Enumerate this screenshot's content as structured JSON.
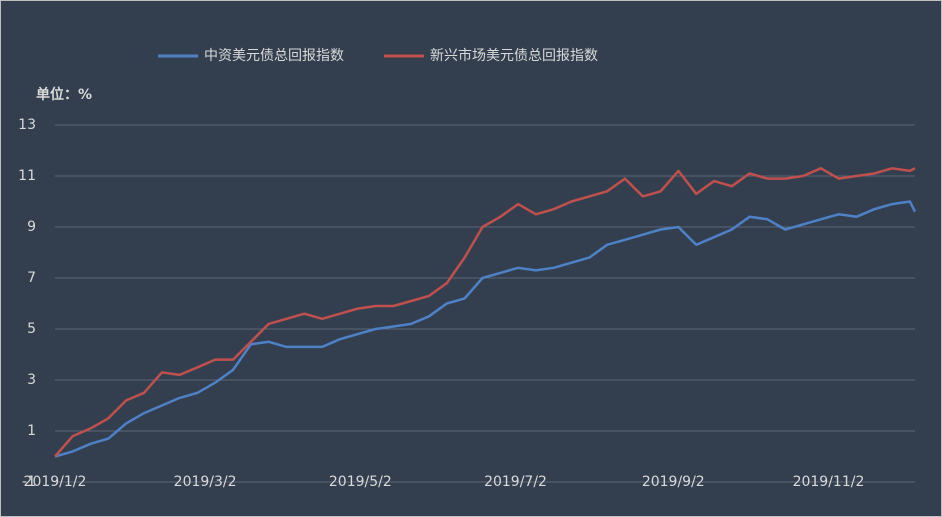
{
  "chart_data": {
    "type": "line",
    "unit_label": "单位：%",
    "x": [
      "2019/1/2",
      "2019/1/9",
      "2019/1/16",
      "2019/1/23",
      "2019/1/30",
      "2019/2/6",
      "2019/2/13",
      "2019/2/20",
      "2019/2/27",
      "2019/3/6",
      "2019/3/13",
      "2019/3/20",
      "2019/3/27",
      "2019/4/3",
      "2019/4/10",
      "2019/4/17",
      "2019/4/24",
      "2019/5/1",
      "2019/5/8",
      "2019/5/15",
      "2019/5/22",
      "2019/5/29",
      "2019/6/5",
      "2019/6/12",
      "2019/6/19",
      "2019/6/26",
      "2019/7/3",
      "2019/7/10",
      "2019/7/17",
      "2019/7/24",
      "2019/7/31",
      "2019/8/7",
      "2019/8/14",
      "2019/8/21",
      "2019/8/28",
      "2019/9/4",
      "2019/9/11",
      "2019/9/18",
      "2019/9/25",
      "2019/10/2",
      "2019/10/9",
      "2019/10/16",
      "2019/10/23",
      "2019/10/30",
      "2019/11/6",
      "2019/11/13",
      "2019/11/20",
      "2019/11/27",
      "2019/12/4",
      "2019/12/6"
    ],
    "series": [
      {
        "name": "中资美元债总回报指数",
        "color": "#4f81c7",
        "values": [
          0.0,
          0.2,
          0.5,
          0.7,
          1.3,
          1.7,
          2.0,
          2.3,
          2.5,
          2.9,
          3.4,
          4.4,
          4.5,
          4.3,
          4.3,
          4.3,
          4.6,
          4.8,
          5.0,
          5.1,
          5.2,
          5.5,
          6.0,
          6.2,
          7.0,
          7.2,
          7.4,
          7.3,
          7.4,
          7.6,
          7.8,
          8.3,
          8.5,
          8.7,
          8.9,
          9.0,
          8.3,
          8.6,
          8.9,
          9.4,
          9.3,
          8.9,
          9.1,
          9.3,
          9.5,
          9.4,
          9.7,
          9.9,
          10.0,
          9.6
        ]
      },
      {
        "name": "新兴市场美元债总回报指数",
        "color": "#c0504d",
        "values": [
          0.0,
          0.8,
          1.1,
          1.5,
          2.2,
          2.5,
          3.3,
          3.2,
          3.5,
          3.8,
          3.8,
          4.5,
          5.2,
          5.4,
          5.6,
          5.4,
          5.6,
          5.8,
          5.9,
          5.9,
          6.1,
          6.3,
          6.8,
          7.8,
          9.0,
          9.4,
          9.9,
          9.5,
          9.7,
          10.0,
          10.2,
          10.4,
          10.9,
          10.2,
          10.4,
          11.2,
          10.3,
          10.8,
          10.6,
          11.1,
          10.9,
          10.9,
          11.0,
          11.3,
          10.9,
          11.0,
          11.1,
          11.3,
          11.2,
          11.3
        ]
      }
    ],
    "xlim": [
      "2019/1/2",
      "2019/12/6"
    ],
    "xticks": [
      "2019/1/2",
      "2019/3/2",
      "2019/5/2",
      "2019/7/2",
      "2019/9/2",
      "2019/11/2"
    ],
    "ylim": [
      -1,
      13
    ],
    "yticks": [
      -1,
      1,
      3,
      5,
      7,
      9,
      11,
      13
    ],
    "grid": true,
    "legend": "top"
  }
}
